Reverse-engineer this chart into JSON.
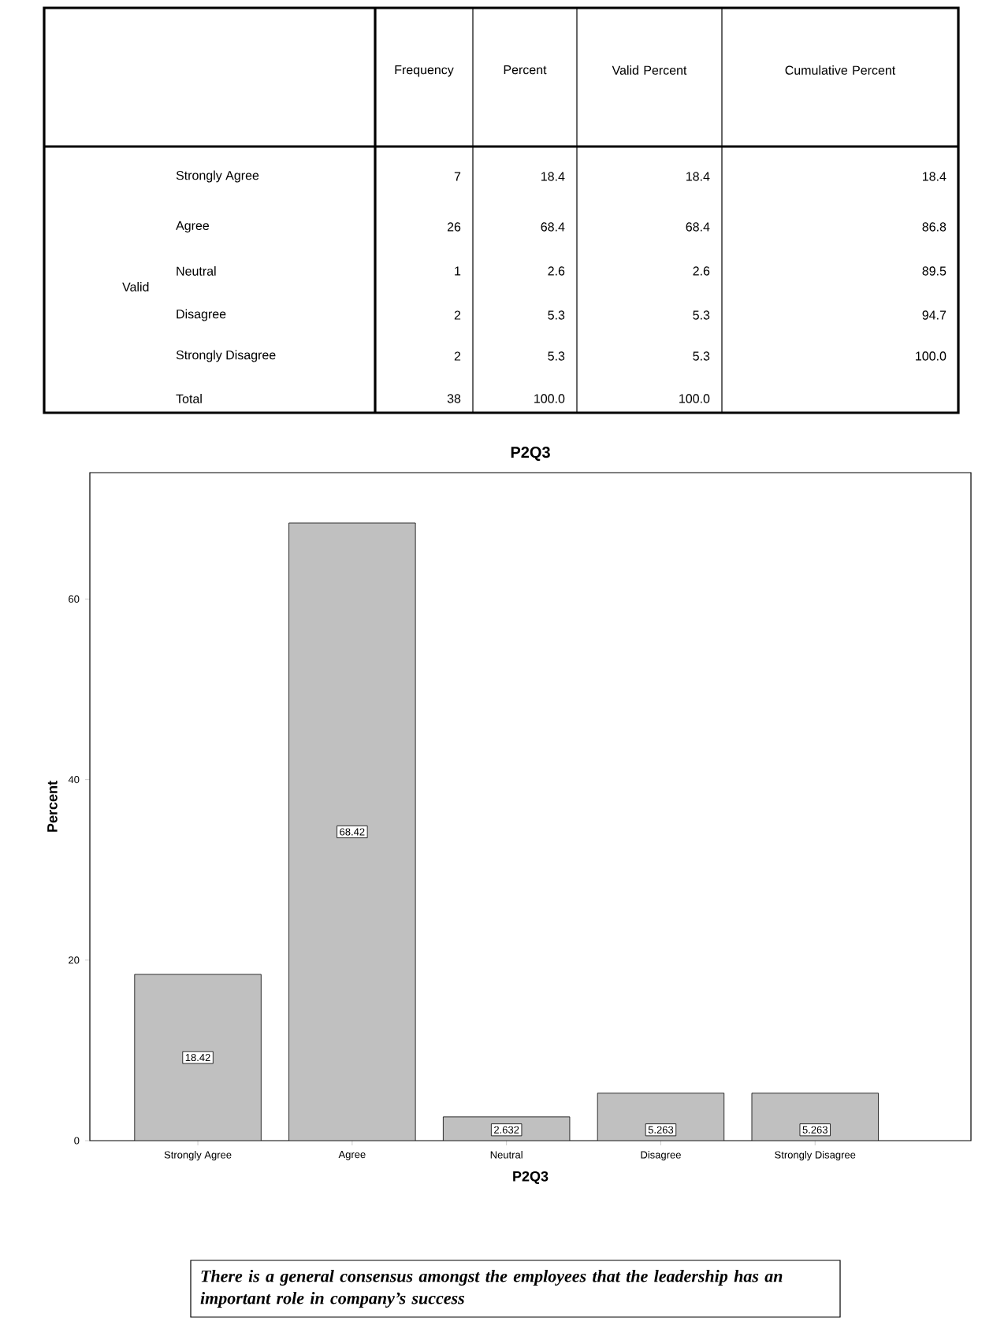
{
  "chart_data": [
    {
      "type": "other",
      "categories": [
        "Strongly Agree",
        "Agree",
        "Neutral",
        "Disagree",
        "Strongly Disagree",
        "Total"
      ],
      "annotations": [
        "Valid",
        "Frequency",
        "Percent",
        "Valid Percent",
        "Cumulative Percent",
        "7",
        "18.4",
        "18.4",
        "18.4",
        "26",
        "68.4",
        "68.4",
        "86.8",
        "1",
        "2.6",
        "2.6",
        "89.5",
        "2",
        "5.3",
        "5.3",
        "94.7",
        "2",
        "5.3",
        "5.3",
        "100.0",
        "38",
        "100.0",
        "100.0"
      ]
    },
    {
      "type": "bar",
      "title": "P2Q3",
      "xlabel": "P2Q3",
      "ylabel": "Percent",
      "categories": [
        "Strongly Agree",
        "Agree",
        "Neutral",
        "Disagree",
        "Strongly Disagree"
      ],
      "values": [
        18.42,
        68.42,
        2.632,
        5.263,
        5.263
      ],
      "color": "#c0c0c0",
      "ylim": [
        0,
        74
      ],
      "yticks": [
        0,
        20,
        40,
        60
      ],
      "data_labels": true,
      "annotations": [
        "There is a general consensus amongst the employees that the leadership has an important role in company’s success"
      ]
    }
  ]
}
